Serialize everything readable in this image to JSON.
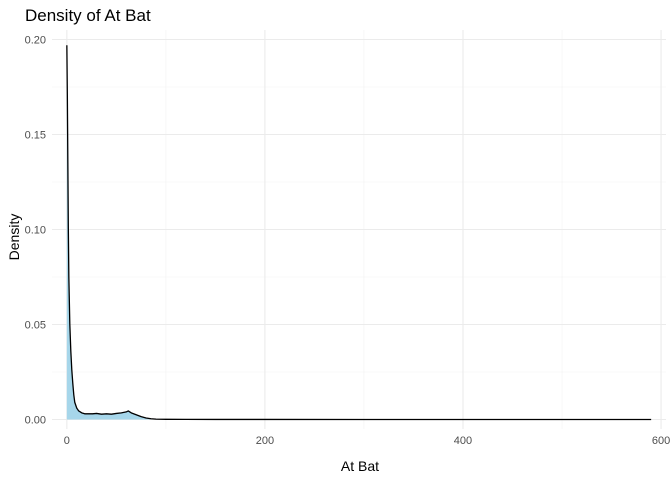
{
  "chart_data": {
    "type": "area",
    "title": "Density of At Bat",
    "xlabel": "At Bat",
    "ylabel": "Density",
    "xlim": [
      -15,
      605
    ],
    "ylim": [
      -0.005,
      0.205
    ],
    "x_ticks": [
      0,
      200,
      400,
      600
    ],
    "x_tick_labels": [
      "0",
      "200",
      "400",
      "600"
    ],
    "y_ticks": [
      0.0,
      0.05,
      0.1,
      0.15,
      0.2
    ],
    "y_tick_labels": [
      "0.00",
      "0.05",
      "0.10",
      "0.15",
      "0.20"
    ],
    "grid": true,
    "legend": "none",
    "fill_color": "#a6d6ea",
    "line_color": "#000000",
    "series": [
      {
        "x": [
          0,
          0.5,
          1,
          1.5,
          2,
          3,
          4,
          5,
          6,
          7,
          8,
          10,
          12,
          15,
          18,
          22,
          26,
          30,
          35,
          40,
          45,
          50,
          55,
          60,
          62,
          65,
          70,
          75,
          80,
          85,
          90,
          100,
          120,
          150,
          200,
          300,
          400,
          500,
          590
        ],
        "y": [
          0.197,
          0.17,
          0.135,
          0.1,
          0.075,
          0.05,
          0.036,
          0.026,
          0.019,
          0.013,
          0.009,
          0.006,
          0.0045,
          0.0035,
          0.003,
          0.003,
          0.003,
          0.0032,
          0.0028,
          0.003,
          0.0028,
          0.0032,
          0.0035,
          0.004,
          0.0045,
          0.0035,
          0.0025,
          0.0015,
          0.0008,
          0.0004,
          0.0002,
          0.0001,
          5e-05,
          3e-05,
          2e-05,
          1e-05,
          1e-05,
          1e-05,
          1e-05
        ]
      }
    ]
  }
}
